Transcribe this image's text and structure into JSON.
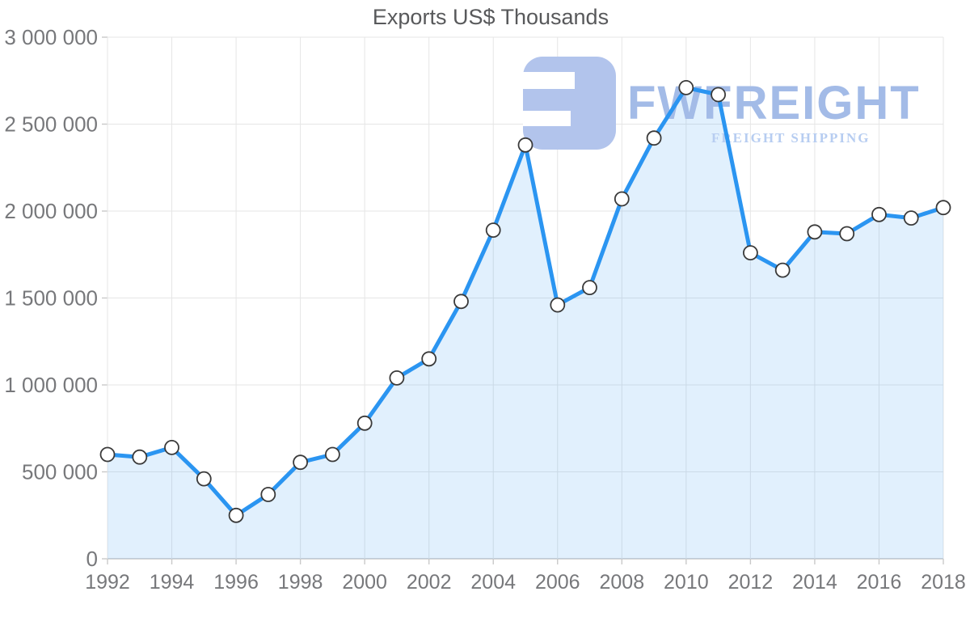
{
  "title": "Exports US$ Thousands",
  "watermark": {
    "brand": "FWFREIGHT",
    "tagline": "FREIGHT SHIPPING",
    "icon": "fwfreight-logo-glyph",
    "glyph_color": "#b2c4ec",
    "brand_color": "#a3bbe7",
    "tagline_color": "#b7cdf1"
  },
  "colors": {
    "line": "#2b95f1",
    "area_fill": "rgba(43,149,241,0.14)",
    "marker_fill": "#ffffff",
    "marker_stroke": "#3a3a3a",
    "grid": "#e6e6e6",
    "axis": "#c9c9c9",
    "tick": "#c9c9c9",
    "title_text": "#58595b",
    "axis_text": "#77787b"
  },
  "chart_data": {
    "type": "area",
    "title": "Exports US$ Thousands",
    "x": [
      1992,
      1993,
      1994,
      1995,
      1996,
      1997,
      1998,
      1999,
      2000,
      2001,
      2002,
      2003,
      2004,
      2005,
      2006,
      2007,
      2008,
      2009,
      2010,
      2011,
      2012,
      2013,
      2014,
      2015,
      2016,
      2017,
      2018
    ],
    "values": [
      600000,
      585000,
      640000,
      460000,
      250000,
      370000,
      555000,
      600000,
      780000,
      1040000,
      1150000,
      1480000,
      1890000,
      2380000,
      1460000,
      1560000,
      2070000,
      2420000,
      2710000,
      2670000,
      1760000,
      1660000,
      1880000,
      1870000,
      1980000,
      1960000,
      2020000
    ],
    "xlabel": "",
    "ylabel": "",
    "ylim": [
      0,
      3000000
    ],
    "xlim": [
      1992,
      2018
    ],
    "xticks": [
      1992,
      1994,
      1996,
      1998,
      2000,
      2002,
      2004,
      2006,
      2008,
      2010,
      2012,
      2014,
      2016,
      2018
    ],
    "yticks": [
      0,
      500000,
      1000000,
      1500000,
      2000000,
      2500000,
      3000000
    ],
    "ytick_labels": [
      "0",
      "500 000",
      "1 000 000",
      "1 500 000",
      "2 000 000",
      "2 500 000",
      "3 000 000"
    ],
    "grid": true,
    "legend": "none",
    "marker": "circle"
  }
}
